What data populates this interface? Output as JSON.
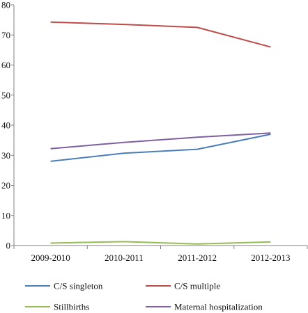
{
  "chart_data": {
    "type": "line",
    "title": "",
    "xlabel": "",
    "ylabel": "",
    "categories": [
      "2009-2010",
      "2010-2011",
      "2011-2012",
      "2012-2013"
    ],
    "ylim": [
      0,
      80
    ],
    "yticks": [
      "0",
      "10",
      "20",
      "30",
      "40",
      "50",
      "60",
      "70",
      "80"
    ],
    "grid": false,
    "legend_position": "bottom",
    "series": [
      {
        "name": "C/S singleton",
        "color": "#4a7ebb",
        "values": [
          28,
          30.7,
          32,
          37
        ]
      },
      {
        "name": "C/S multiple",
        "color": "#be4b48",
        "values": [
          74.3,
          73.5,
          72.5,
          66
        ]
      },
      {
        "name": "Stillbirths",
        "color": "#98b954",
        "values": [
          0.8,
          1.3,
          0.5,
          1.2
        ]
      },
      {
        "name": "Maternal hospitalization",
        "color": "#7d60a0",
        "values": [
          32.2,
          34.3,
          36,
          37.4
        ]
      }
    ]
  }
}
